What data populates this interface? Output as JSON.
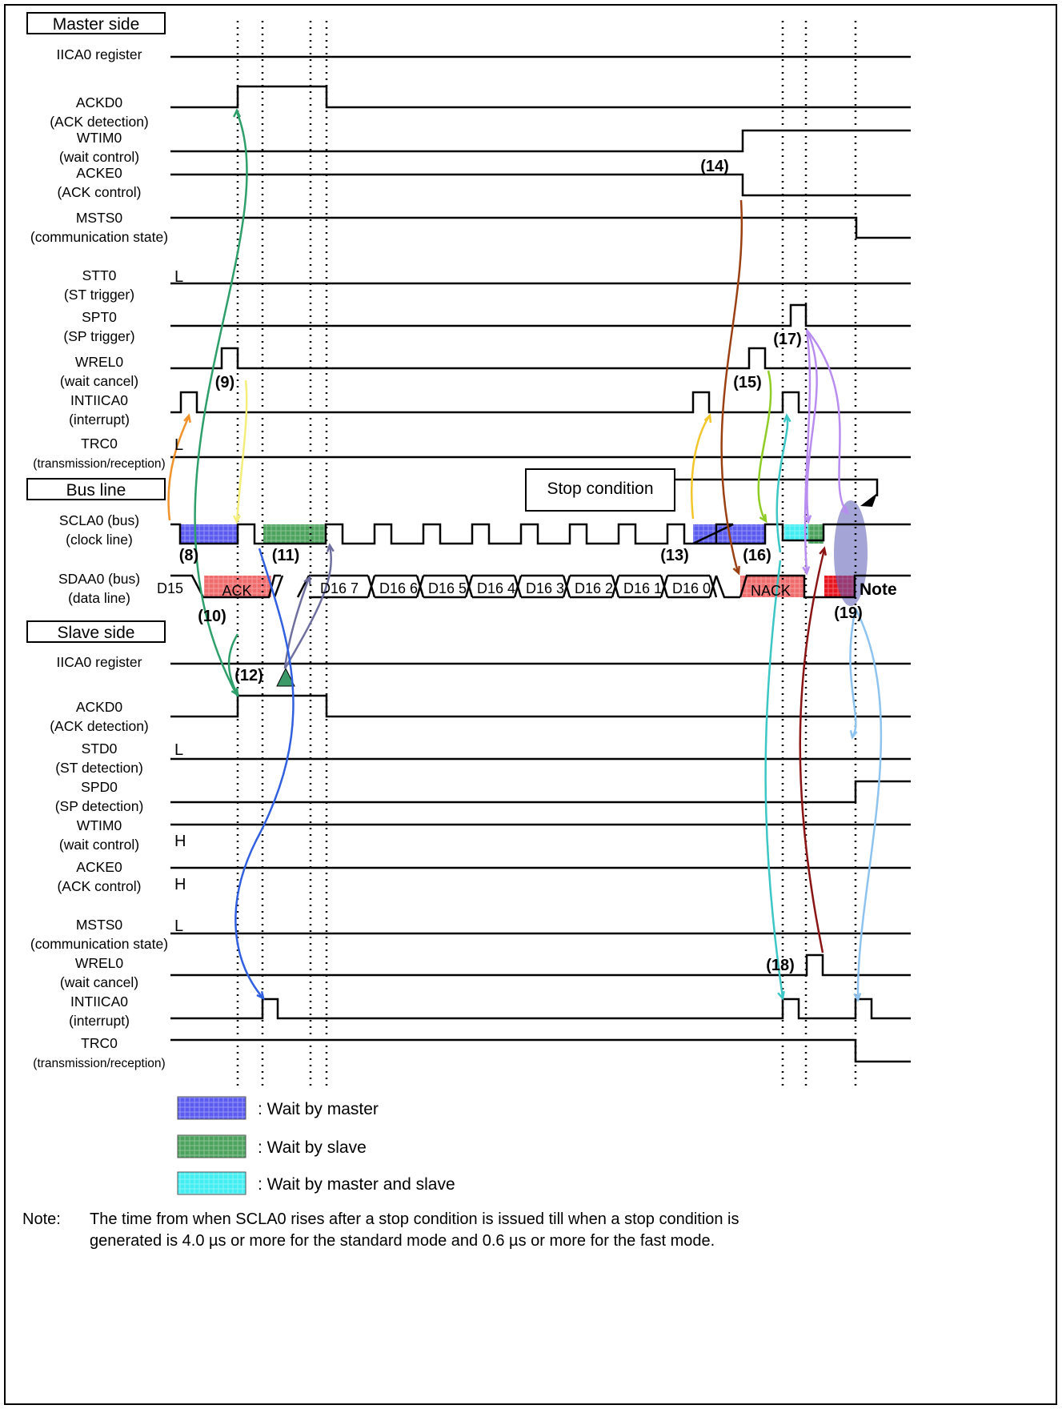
{
  "sections": {
    "master": "Master side",
    "bus": "Bus line",
    "slave": "Slave side"
  },
  "signals": {
    "m_iica": [
      "IICA0 register"
    ],
    "m_ackd": [
      "ACKD0",
      "(ACK detection)"
    ],
    "m_wtim": [
      "WTIM0",
      "(wait control)"
    ],
    "m_acke": [
      "ACKE0",
      "(ACK control)"
    ],
    "m_msts": [
      "MSTS0",
      "(communication state)"
    ],
    "m_stt": [
      "STT0",
      "(ST trigger)"
    ],
    "m_spt": [
      "SPT0",
      "(SP trigger)"
    ],
    "m_wrel": [
      "WREL0",
      "(wait cancel)"
    ],
    "m_int": [
      "INTIICA0",
      "(interrupt)"
    ],
    "m_trc": [
      "TRC0",
      "(transmission/reception)"
    ],
    "b_scl": [
      "SCLA0 (bus)",
      "(clock line)"
    ],
    "b_sda": [
      "SDAA0 (bus)",
      "(data line)"
    ],
    "s_iica": [
      "IICA0 register"
    ],
    "s_ackd": [
      "ACKD0",
      "(ACK detection)"
    ],
    "s_std": [
      "STD0",
      "(ST detection)"
    ],
    "s_spd": [
      "SPD0",
      "(SP detection)"
    ],
    "s_wtim": [
      "WTIM0",
      "(wait control)"
    ],
    "s_acke": [
      "ACKE0",
      "(ACK control)"
    ],
    "s_msts": [
      "MSTS0",
      "(communication state)"
    ],
    "s_wrel": [
      "WREL0",
      "(wait cancel)"
    ],
    "s_int": [
      "INTIICA0",
      "(interrupt)"
    ],
    "s_trc": [
      "TRC0",
      "(transmission/reception)"
    ]
  },
  "levels": {
    "m_stt": "L",
    "m_trc": "L",
    "s_std": "L",
    "s_wtim": "H",
    "s_acke": "H",
    "s_msts": "L"
  },
  "steps": [
    "(8)",
    "(9)",
    "(10)",
    "(11)",
    "(12)",
    "(13)",
    "(14)",
    "(15)",
    "(16)",
    "(17)",
    "(18)",
    "(19)"
  ],
  "stop_condition": "Stop condition",
  "bus_labels": {
    "ack": "ACK",
    "nack": "NACK",
    "note": "Note",
    "pre_bit": "D15 0",
    "bits": [
      "D16 7",
      "D16 6",
      "D16 5",
      "D16 4",
      "D16 3",
      "D16 2",
      "D16 1",
      "D16 0"
    ]
  },
  "legend": [
    {
      "label": ": Wait by master",
      "color": "#5b5bf0"
    },
    {
      "label": ": Wait by slave",
      "color": "#4da35e"
    },
    {
      "label": ": Wait by master and slave",
      "color": "#43eef2"
    }
  ],
  "colors": {
    "nack_red": "#f06b6b",
    "stop_red": "#e8141e",
    "note_ellipse": "#5a5ab4"
  },
  "note": {
    "label": "Note:",
    "lines": [
      "The time from when SCLA0 rises after a stop condition is issued till when a stop condition is",
      "generated is 4.0 µs or more for the standard mode and 0.6 µs or more for the fast mode."
    ]
  }
}
